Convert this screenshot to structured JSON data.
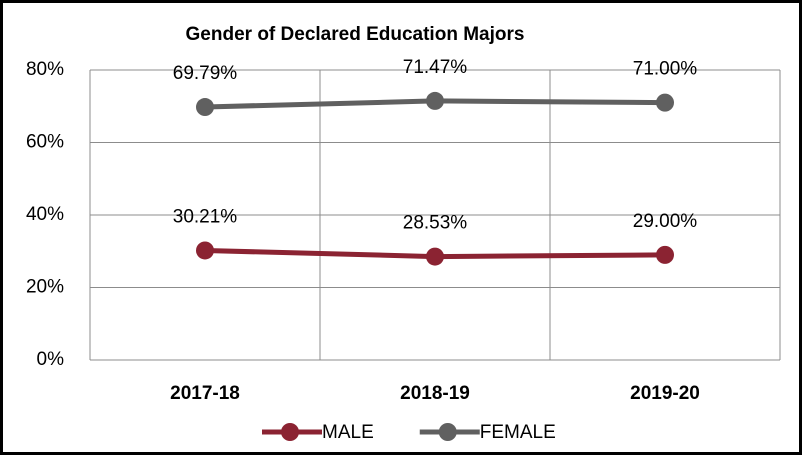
{
  "chart_data": {
    "type": "line",
    "title": "Gender of Declared Education Majors",
    "categories": [
      "2017-18",
      "2018-19",
      "2019-20"
    ],
    "series": [
      {
        "name": "MALE",
        "color": "#8b2332",
        "values": [
          30.21,
          28.53,
          29.0
        ],
        "value_labels": [
          "30.21%",
          "28.53%",
          "29.00%"
        ]
      },
      {
        "name": "FEMALE",
        "color": "#606060",
        "values": [
          69.79,
          71.47,
          71.0
        ],
        "value_labels": [
          "69.79%",
          "71.47%",
          "71.00%"
        ]
      }
    ],
    "ylim": [
      0,
      80
    ],
    "yticks": [
      {
        "value": 0,
        "label": "0%"
      },
      {
        "value": 20,
        "label": "20%"
      },
      {
        "value": 40,
        "label": "40%"
      },
      {
        "value": 60,
        "label": "60%"
      },
      {
        "value": 80,
        "label": "80%"
      }
    ],
    "grid": true,
    "legend": "bottom"
  }
}
